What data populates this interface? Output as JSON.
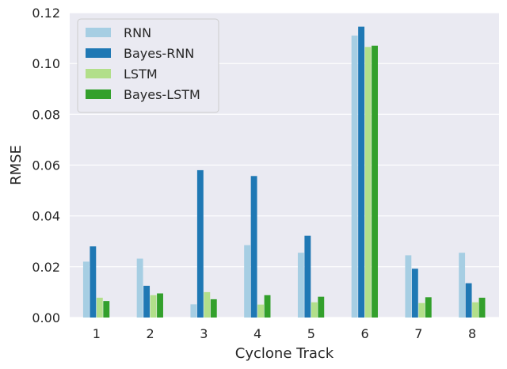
{
  "chart_data": {
    "type": "bar",
    "title": "",
    "xlabel": "Cyclone Track",
    "ylabel": "RMSE",
    "categories": [
      "1",
      "2",
      "3",
      "4",
      "5",
      "6",
      "7",
      "8"
    ],
    "ylim": [
      0,
      0.12
    ],
    "yticks": [
      "0.00",
      "0.02",
      "0.04",
      "0.06",
      "0.08",
      "0.10",
      "0.12"
    ],
    "grid": true,
    "legend_position": "top-left",
    "series": [
      {
        "name": "RNN",
        "color": "#a6cee3",
        "values": [
          0.022,
          0.0232,
          0.0052,
          0.0285,
          0.0255,
          0.111,
          0.0245,
          0.0255
        ]
      },
      {
        "name": "Bayes-RNN",
        "color": "#1f78b4",
        "values": [
          0.028,
          0.0125,
          0.058,
          0.0557,
          0.0322,
          0.1145,
          0.0192,
          0.0135
        ]
      },
      {
        "name": "LSTM",
        "color": "#b2df8a",
        "values": [
          0.0078,
          0.0088,
          0.01,
          0.0051,
          0.006,
          0.1065,
          0.0057,
          0.006
        ]
      },
      {
        "name": "Bayes-LSTM",
        "color": "#33a02c",
        "values": [
          0.0065,
          0.0095,
          0.0072,
          0.0088,
          0.0082,
          0.107,
          0.008,
          0.0078
        ]
      }
    ]
  }
}
